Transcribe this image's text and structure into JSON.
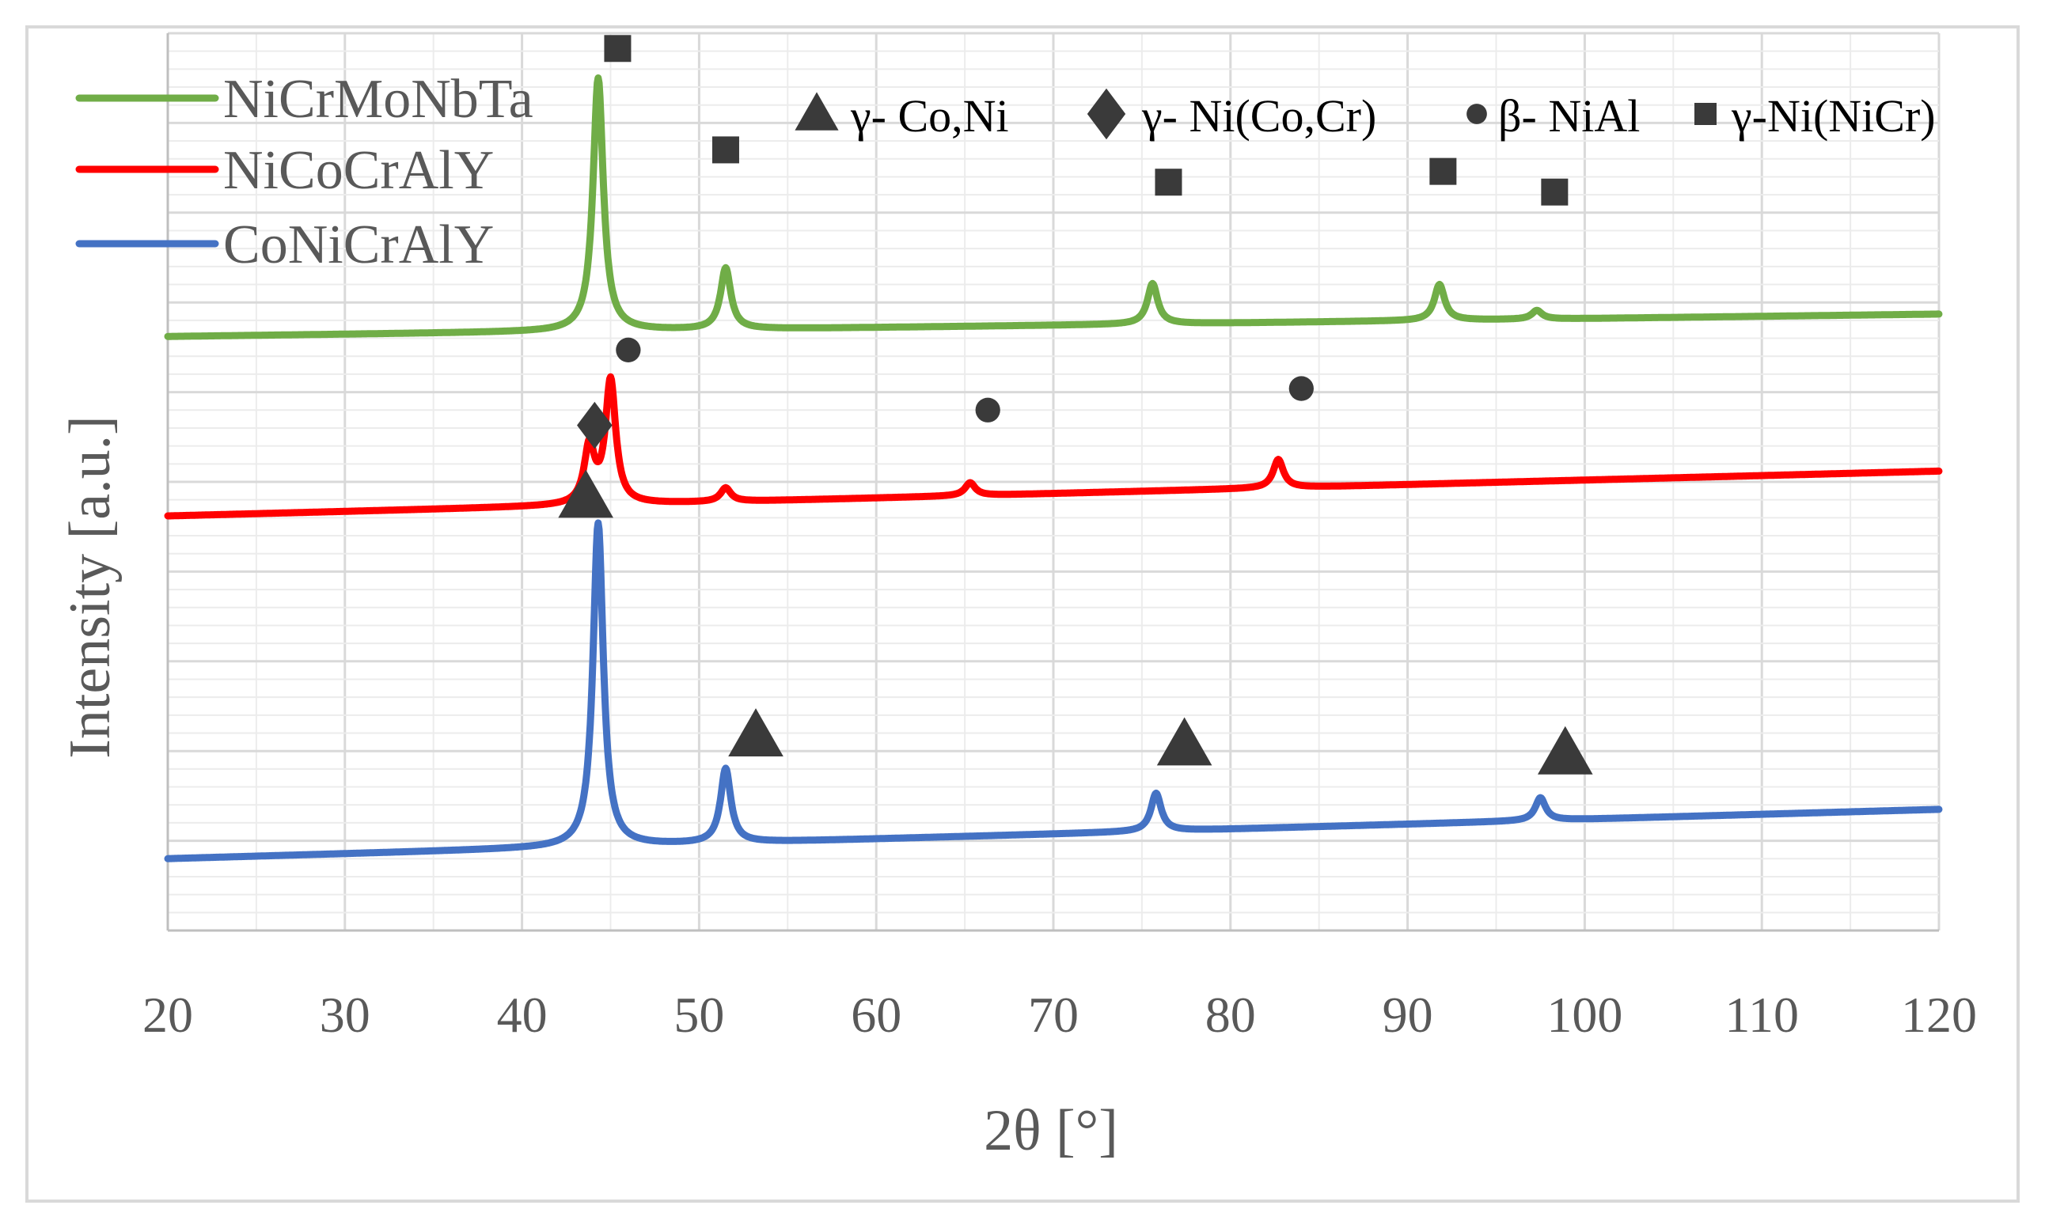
{
  "chart_data": {
    "type": "line",
    "title": "",
    "xlabel": "2θ [°]",
    "ylabel": "Intensity [a.u.]",
    "xlim": [
      20,
      120
    ],
    "xticks": [
      "20",
      "30",
      "40",
      "50",
      "60",
      "70",
      "80",
      "90",
      "100",
      "110",
      "120"
    ],
    "ylim": [
      0,
      100
    ],
    "grid": true,
    "legend_position": "top-left",
    "series": [
      {
        "name": "NiCrMoNbTa",
        "color": "#70ad47",
        "baseline": [
          [
            20,
            66.2
          ],
          [
            120,
            68.7
          ]
        ],
        "peaks": [
          {
            "x": 44.3,
            "y": 95.0
          },
          {
            "x": 51.5,
            "y": 73.8
          },
          {
            "x": 75.6,
            "y": 72.1
          },
          {
            "x": 91.8,
            "y": 72.0
          },
          {
            "x": 97.3,
            "y": 69.1
          }
        ]
      },
      {
        "name": "NiCoCrAlY",
        "color": "#ff0000",
        "baseline": [
          [
            20,
            46.2
          ],
          [
            120,
            51.2
          ]
        ],
        "peaks": [
          {
            "x": 43.8,
            "y": 53.7
          },
          {
            "x": 45.0,
            "y": 61.2
          },
          {
            "x": 51.5,
            "y": 49.3
          },
          {
            "x": 65.3,
            "y": 49.9
          },
          {
            "x": 82.7,
            "y": 52.5
          }
        ]
      },
      {
        "name": "CoNiCrAlY",
        "color": "#4472c4",
        "baseline": [
          [
            20,
            8.0
          ],
          [
            120,
            13.5
          ]
        ],
        "peaks": [
          {
            "x": 44.3,
            "y": 45.4
          },
          {
            "x": 51.5,
            "y": 18.0
          },
          {
            "x": 75.8,
            "y": 15.3
          },
          {
            "x": 97.5,
            "y": 14.8
          }
        ]
      }
    ],
    "phase_legend": [
      {
        "symbol": "triangle",
        "label": "γ- Co,Ni"
      },
      {
        "symbol": "diamond",
        "label": "γ- Ni(Co,Cr)"
      },
      {
        "symbol": "circle",
        "label": "β- NiAl"
      },
      {
        "symbol": "square",
        "label": "γ-Ni(NiCr)"
      }
    ],
    "annotations": [
      {
        "symbol": "square",
        "x": 45.4,
        "y": 98.3
      },
      {
        "symbol": "square",
        "x": 51.5,
        "y": 87.0
      },
      {
        "symbol": "square",
        "x": 76.5,
        "y": 83.4
      },
      {
        "symbol": "square",
        "x": 92.0,
        "y": 84.6
      },
      {
        "symbol": "square",
        "x": 98.3,
        "y": 82.3
      },
      {
        "symbol": "circle",
        "x": 46.0,
        "y": 64.7
      },
      {
        "symbol": "circle",
        "x": 66.3,
        "y": 58.0
      },
      {
        "symbol": "circle",
        "x": 84.0,
        "y": 60.4
      },
      {
        "symbol": "diamond",
        "x": 44.1,
        "y": 56.3
      },
      {
        "symbol": "triangle",
        "x": 43.6,
        "y": 48.3
      },
      {
        "symbol": "triangle",
        "x": 53.2,
        "y": 21.7
      },
      {
        "symbol": "triangle",
        "x": 77.4,
        "y": 20.7
      },
      {
        "symbol": "triangle",
        "x": 98.9,
        "y": 19.7
      }
    ]
  }
}
